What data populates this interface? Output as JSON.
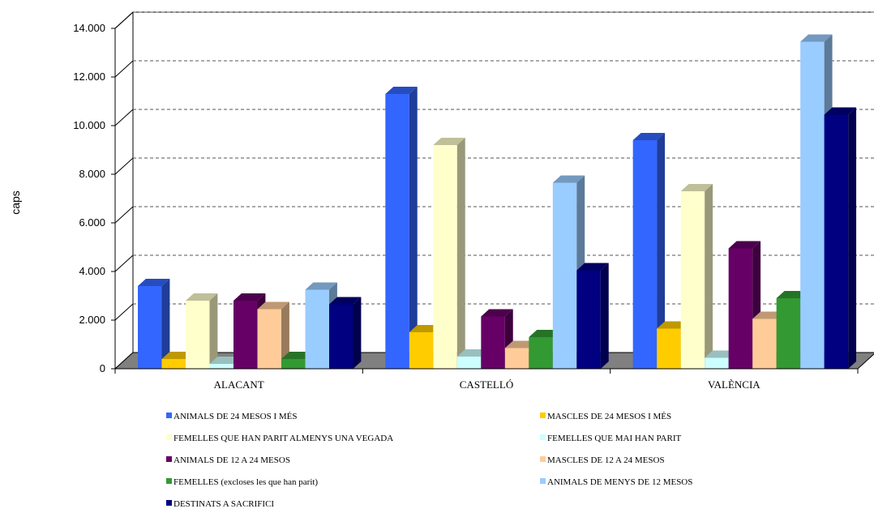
{
  "chart_data": {
    "type": "bar",
    "title": "",
    "xlabel": "",
    "ylabel": "caps",
    "ylim": [
      0,
      14000
    ],
    "yticks": [
      "0",
      "2.000",
      "4.000",
      "6.000",
      "8.000",
      "10.000",
      "12.000",
      "14.000"
    ],
    "grid": true,
    "legend_position": "bottom",
    "categories": [
      "ALACANT",
      "CASTELLÓ",
      "VALÈNCIA"
    ],
    "series": [
      {
        "name": "ANIMALS DE 24 MESOS I MÉS",
        "color": "#3366ff",
        "values": [
          3400,
          11300,
          9400
        ]
      },
      {
        "name": "MASCLES DE 24 MESOS I MÉS",
        "color": "#ffcc00",
        "values": [
          400,
          1500,
          1650
        ]
      },
      {
        "name": "FEMELLES QUE HAN PARIT ALMENYS UNA VEGADA",
        "color": "#ffffcc",
        "values": [
          2800,
          9200,
          7300
        ]
      },
      {
        "name": "FEMELLES QUE MAI HAN PARIT",
        "color": "#ccffff",
        "values": [
          200,
          500,
          450
        ]
      },
      {
        "name": "ANIMALS DE 12 A 24 MESOS",
        "color": "#660066",
        "values": [
          2800,
          2150,
          4950
        ]
      },
      {
        "name": "MASCLES DE 12 A 24 MESOS",
        "color": "#ffcc99",
        "values": [
          2450,
          850,
          2050
        ]
      },
      {
        "name": "FEMELLES (excloses les que han parit)",
        "color": "#339933",
        "values": [
          400,
          1300,
          2900
        ]
      },
      {
        "name": "ANIMALS DE MENYS DE 12 MESOS",
        "color": "#99ccff",
        "values": [
          3250,
          7650,
          13450
        ]
      },
      {
        "name": "DESTINATS A SACRIFICI",
        "color": "#000080",
        "values": [
          2650,
          4050,
          10450
        ]
      }
    ]
  }
}
